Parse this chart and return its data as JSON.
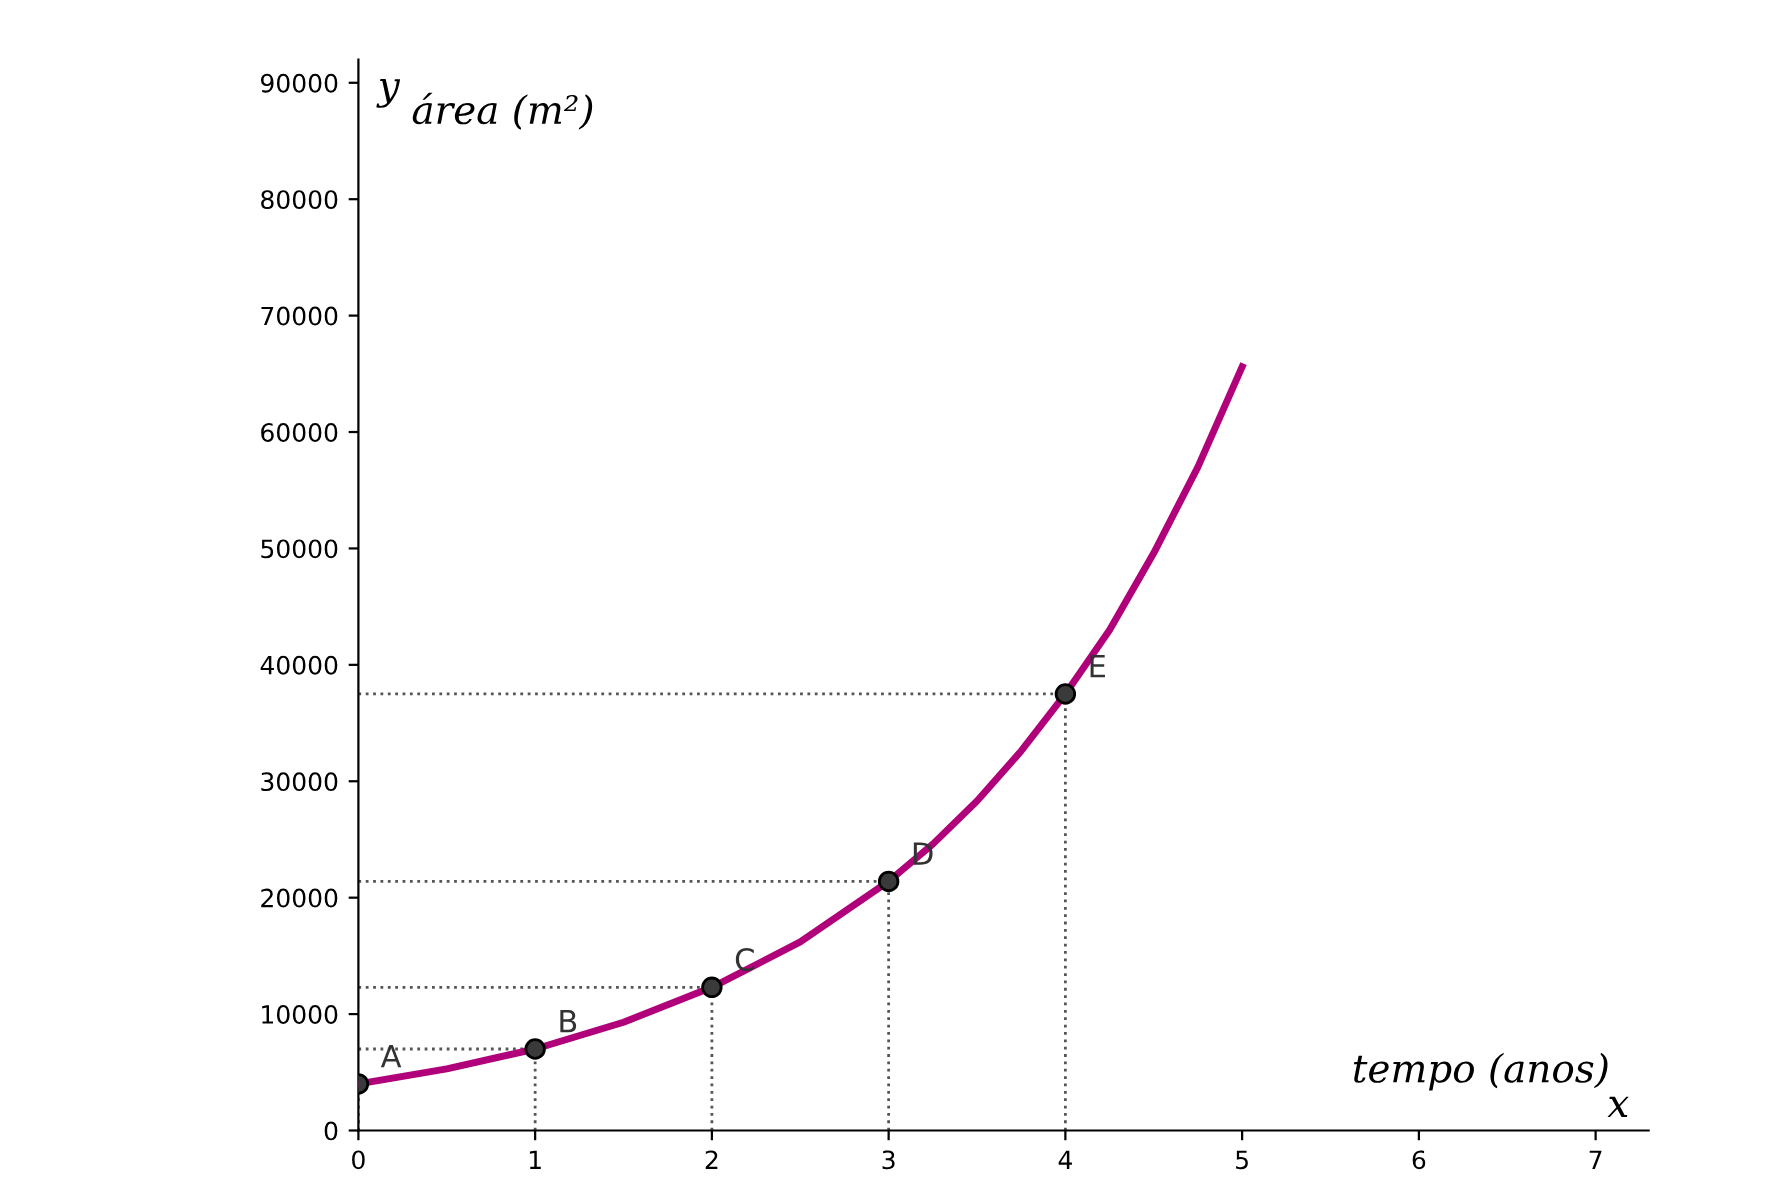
{
  "chart_data": {
    "type": "line",
    "xlabel": "tempo (anos)",
    "ylabel": "área (m²)",
    "xlim": [
      0,
      7.3
    ],
    "ylim": [
      0,
      92000
    ],
    "xticks": [
      0,
      1,
      2,
      3,
      4,
      5,
      6,
      7
    ],
    "yticks": [
      0,
      10000,
      20000,
      30000,
      40000,
      50000,
      60000,
      70000,
      80000,
      90000
    ],
    "grid": false,
    "legend": false,
    "series": [
      {
        "color": "#b0007a",
        "marker": "none",
        "line_style": "solid",
        "x": [
          0,
          0.5,
          1,
          1.5,
          2,
          2.5,
          3,
          3.25,
          3.5,
          3.75,
          4,
          4.25,
          4.5,
          4.75,
          5
        ],
        "values": [
          4000,
          5300,
          7000,
          9300,
          12300,
          16200,
          21400,
          24600,
          28300,
          32600,
          37500,
          43000,
          49600,
          57000,
          65600
        ]
      },
      {
        "type": "scatter",
        "color": "#3a3a3a",
        "marker": "circle",
        "line_style": "dotted",
        "x": [
          0,
          1,
          2,
          3,
          4
        ],
        "values": [
          4000,
          7000,
          12300,
          21400,
          37500
        ]
      }
    ],
    "annotations": [
      {
        "text": "A",
        "x": 0,
        "y": 4000
      },
      {
        "text": "B",
        "x": 1,
        "y": 7000
      },
      {
        "text": "C",
        "x": 2,
        "y": 12300
      },
      {
        "text": "D",
        "x": 3,
        "y": 21400
      },
      {
        "text": "E",
        "x": 4,
        "y": 37500
      },
      "y",
      "x"
    ]
  }
}
